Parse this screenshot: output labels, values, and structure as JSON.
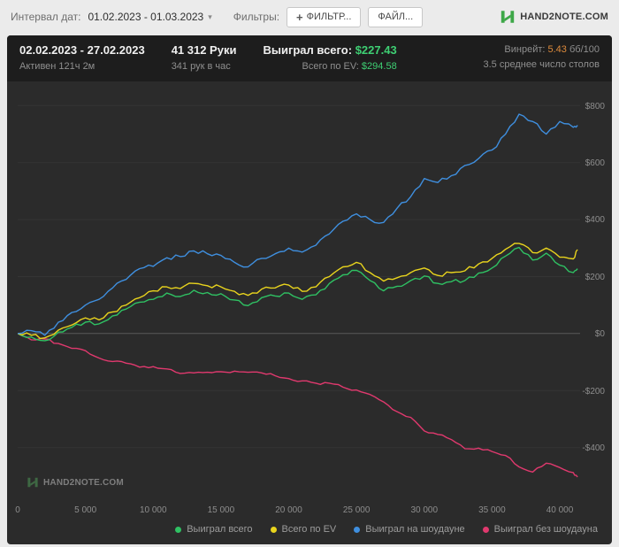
{
  "toolbar": {
    "interval_label": "Интервал дат:",
    "interval_value": "01.02.2023 - 01.03.2023",
    "filters_label": "Фильтры:",
    "filter_button_label": "ФИЛЬТР...",
    "file_button_label": "ФАЙЛ...",
    "brand": "HAND2NOTE.COM"
  },
  "summary": {
    "date_range": "02.02.2023 - 27.02.2023",
    "active_time": "Активен 121ч 2м",
    "hands": "41 312 Руки",
    "hands_per_hour": "341 рук в час",
    "won_total_label": "Выиграл всего:",
    "won_total_value": "$227.43",
    "ev_total_label": "Всего по EV:",
    "ev_total_value": "$294.58",
    "winrate_label": "Винрейт:",
    "winrate_value": "5.43",
    "winrate_units": "бб/100",
    "avg_tables": "3.5 среднее число столов"
  },
  "watermark": "HAND2NOTE.COM",
  "colors": {
    "won_total": "#2fc163",
    "ev_total": "#e9d41d",
    "showdown": "#3f8fdf",
    "non_showdown": "#e0396e",
    "accent_green": "#3ecf73",
    "accent_orange": "#dd8a3c",
    "panel_bg": "#2b2b2b",
    "header_bg": "#1d1d1d"
  },
  "chart_data": {
    "type": "line",
    "title": "",
    "xlabel": "",
    "ylabel": "",
    "x_unit": "hands",
    "xlim": [
      0,
      41500
    ],
    "ylim": [
      -600,
      860
    ],
    "grid": "horizontal",
    "legend_position": "bottom-right",
    "x_ticks": [
      {
        "value": 0,
        "label": "0"
      },
      {
        "value": 5000,
        "label": "5 000"
      },
      {
        "value": 10000,
        "label": "10 000"
      },
      {
        "value": 15000,
        "label": "15 000"
      },
      {
        "value": 20000,
        "label": "20 000"
      },
      {
        "value": 25000,
        "label": "25 000"
      },
      {
        "value": 30000,
        "label": "30 000"
      },
      {
        "value": 35000,
        "label": "35 000"
      },
      {
        "value": 40000,
        "label": "40 000"
      }
    ],
    "y_ticks": [
      {
        "value": 800,
        "label": "$800"
      },
      {
        "value": 600,
        "label": "$600"
      },
      {
        "value": 400,
        "label": "$400"
      },
      {
        "value": 200,
        "label": "$200"
      },
      {
        "value": 0,
        "label": "$0"
      },
      {
        "value": -200,
        "label": "-$200"
      },
      {
        "value": -400,
        "label": "-$400"
      }
    ],
    "x": [
      0,
      1000,
      2000,
      3000,
      4000,
      5000,
      6000,
      7000,
      8000,
      9000,
      10000,
      11000,
      12000,
      13000,
      14000,
      15000,
      16000,
      17000,
      18000,
      19000,
      20000,
      21000,
      22000,
      23000,
      24000,
      25000,
      26000,
      27000,
      28000,
      29000,
      30000,
      31000,
      32000,
      33000,
      34000,
      35000,
      36000,
      37000,
      38000,
      39000,
      40000,
      41000,
      41312
    ],
    "series": [
      {
        "name": "Выиграл всего",
        "color": "#2fc163",
        "values": [
          0,
          -12,
          -25,
          5,
          22,
          40,
          34,
          62,
          86,
          110,
          120,
          142,
          130,
          152,
          144,
          140,
          118,
          98,
          126,
          132,
          142,
          120,
          136,
          176,
          206,
          222,
          186,
          150,
          166,
          186,
          202,
          176,
          182,
          186,
          212,
          230,
          272,
          302,
          258,
          282,
          240,
          214,
          227.43
        ]
      },
      {
        "name": "Всего по EV",
        "color": "#e9d41d",
        "values": [
          0,
          -6,
          -15,
          12,
          30,
          55,
          48,
          76,
          100,
          126,
          150,
          164,
          158,
          176,
          168,
          164,
          148,
          134,
          156,
          160,
          170,
          148,
          164,
          200,
          234,
          250,
          214,
          184,
          196,
          214,
          230,
          204,
          214,
          220,
          244,
          264,
          296,
          316,
          284,
          300,
          268,
          262,
          294.58
        ]
      },
      {
        "name": "Выиграл на шоудауне",
        "color": "#3f8fdf",
        "values": [
          0,
          10,
          -6,
          40,
          74,
          100,
          120,
          160,
          190,
          228,
          236,
          266,
          270,
          290,
          280,
          274,
          250,
          234,
          264,
          280,
          300,
          286,
          310,
          350,
          394,
          420,
          400,
          390,
          440,
          480,
          544,
          530,
          554,
          590,
          614,
          644,
          700,
          770,
          744,
          700,
          744,
          724,
          730.7
        ]
      },
      {
        "name": "Выиграл без шоудауна",
        "color": "#e0396e",
        "values": [
          0,
          -22,
          -19,
          -35,
          -52,
          -60,
          -86,
          -98,
          -104,
          -118,
          -116,
          -124,
          -140,
          -138,
          -136,
          -134,
          -132,
          -136,
          -138,
          -148,
          -158,
          -166,
          -174,
          -174,
          -188,
          -198,
          -214,
          -240,
          -274,
          -294,
          -342,
          -354,
          -372,
          -404,
          -402,
          -414,
          -428,
          -468,
          -486,
          -455,
          -470,
          -488,
          -503.27
        ]
      }
    ]
  }
}
